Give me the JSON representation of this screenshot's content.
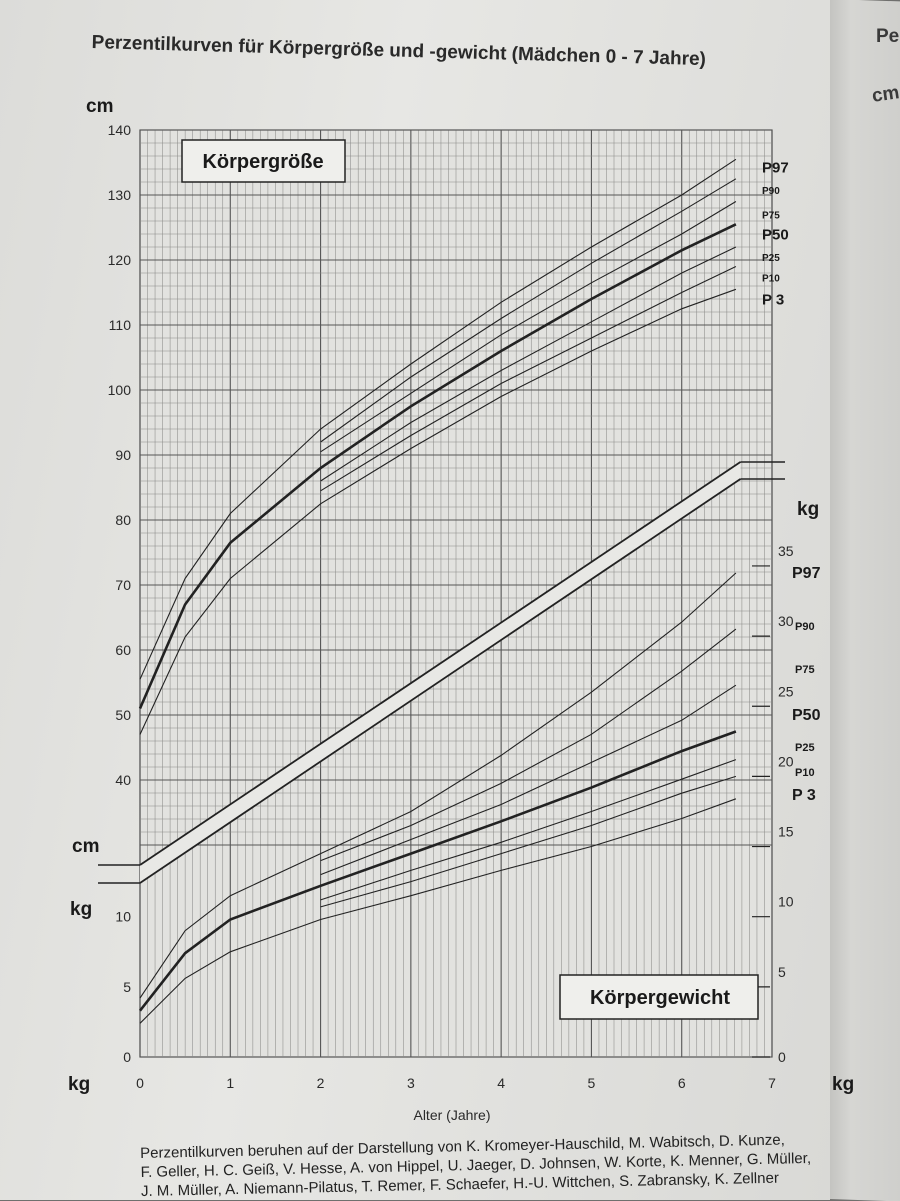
{
  "title": "Perzentilkurven für Körpergröße und -gewicht (Mädchen 0 - 7 Jahre)",
  "right_page": {
    "text_1": "Pe",
    "text_2": "cm"
  },
  "footer": {
    "line_1": "Perzentilkurven beruhen auf der Darstellung von K. Kromeyer-Hauschild, M. Wabitsch, D. Kunze,",
    "line_2": "F. Geller, H. C. Geiß, V. Hesse, A. von Hippel, U. Jaeger, D. Johnsen, W. Korte, K. Menner, G. Müller,",
    "line_3": "J. M. Müller, A. Niemann-Pilatus, T. Remer, F. Schaefer, H.-U. Wittchen, S. Zabransky, K. Zellner"
  },
  "chart_data": [
    {
      "type": "line",
      "label": "Körpergröße",
      "unit": "cm",
      "xlabel": "Alter (Jahre)",
      "xlim": [
        0,
        7
      ],
      "ylim": [
        0,
        140
      ],
      "yticks": [
        40,
        50,
        60,
        70,
        80,
        90,
        100,
        110,
        120,
        130,
        140
      ],
      "grid": true,
      "series": [
        {
          "name": "P97",
          "points": [
            [
              0,
              55.5
            ],
            [
              0.5,
              71
            ],
            [
              1,
              81
            ],
            [
              2,
              94
            ],
            [
              3,
              104
            ],
            [
              4,
              113.5
            ],
            [
              5,
              122
            ],
            [
              6,
              130
            ],
            [
              6.6,
              135.5
            ]
          ]
        },
        {
          "name": "P90",
          "points": [
            [
              2,
              92
            ],
            [
              3,
              102
            ],
            [
              4,
              111
            ],
            [
              5,
              119.5
            ],
            [
              6,
              127.5
            ],
            [
              6.6,
              132.5
            ]
          ]
        },
        {
          "name": "P75",
          "points": [
            [
              2,
              90.5
            ],
            [
              3,
              99.5
            ],
            [
              4,
              108.5
            ],
            [
              5,
              116.5
            ],
            [
              6,
              124
            ],
            [
              6.6,
              129
            ]
          ]
        },
        {
          "name": "P50",
          "points": [
            [
              0,
              51
            ],
            [
              0.5,
              67
            ],
            [
              1,
              76.5
            ],
            [
              2,
              88
            ],
            [
              3,
              97.5
            ],
            [
              4,
              106
            ],
            [
              5,
              114
            ],
            [
              6,
              121.5
            ],
            [
              6.6,
              125.5
            ]
          ]
        },
        {
          "name": "P25",
          "points": [
            [
              2,
              86
            ],
            [
              3,
              95
            ],
            [
              4,
              103
            ],
            [
              5,
              110.5
            ],
            [
              6,
              118
            ],
            [
              6.6,
              122
            ]
          ]
        },
        {
          "name": "P10",
          "points": [
            [
              2,
              84.5
            ],
            [
              3,
              93
            ],
            [
              4,
              101
            ],
            [
              5,
              108
            ],
            [
              6,
              115
            ],
            [
              6.6,
              119
            ]
          ]
        },
        {
          "name": "P 3",
          "points": [
            [
              0,
              47
            ],
            [
              0.5,
              62
            ],
            [
              1,
              71
            ],
            [
              2,
              82.5
            ],
            [
              3,
              91
            ],
            [
              4,
              99
            ],
            [
              5,
              106
            ],
            [
              6,
              112.5
            ],
            [
              6.6,
              115.5
            ]
          ]
        }
      ]
    },
    {
      "type": "line",
      "label": "Körpergewicht",
      "unit": "kg",
      "xlabel": "Alter (Jahre)",
      "xlim": [
        0,
        7
      ],
      "ylim": [
        0,
        35
      ],
      "left_yticks": [
        0,
        5,
        10
      ],
      "right_yticks": [
        0,
        5,
        10,
        15,
        20,
        25,
        30,
        35
      ],
      "xticks": [
        0,
        1,
        2,
        3,
        4,
        5,
        6,
        7
      ],
      "grid": true,
      "series": [
        {
          "name": "P97",
          "points": [
            [
              0,
              4.2
            ],
            [
              0.5,
              9
            ],
            [
              1,
              11.5
            ],
            [
              2,
              14.5
            ],
            [
              3,
              17.5
            ],
            [
              4,
              21.5
            ],
            [
              5,
              26
            ],
            [
              6,
              31
            ],
            [
              6.6,
              34.5
            ]
          ]
        },
        {
          "name": "P90",
          "points": [
            [
              2,
              14
            ],
            [
              3,
              16.5
            ],
            [
              4,
              19.5
            ],
            [
              5,
              23
            ],
            [
              6,
              27.5
            ],
            [
              6.6,
              30.5
            ]
          ]
        },
        {
          "name": "P75",
          "points": [
            [
              2,
              13
            ],
            [
              3,
              15.5
            ],
            [
              4,
              18
            ],
            [
              5,
              21
            ],
            [
              6,
              24
            ],
            [
              6.6,
              26.5
            ]
          ]
        },
        {
          "name": "P50",
          "points": [
            [
              0,
              3.3
            ],
            [
              0.5,
              7.4
            ],
            [
              1,
              9.8
            ],
            [
              2,
              12.2
            ],
            [
              3,
              14.5
            ],
            [
              4,
              16.8
            ],
            [
              5,
              19.2
            ],
            [
              6,
              21.8
            ],
            [
              6.6,
              23.2
            ]
          ]
        },
        {
          "name": "P25",
          "points": [
            [
              2,
              11.2
            ],
            [
              3,
              13.3
            ],
            [
              4,
              15.3
            ],
            [
              5,
              17.5
            ],
            [
              6,
              19.8
            ],
            [
              6.6,
              21.2
            ]
          ]
        },
        {
          "name": "P10",
          "points": [
            [
              2,
              10.7
            ],
            [
              3,
              12.5
            ],
            [
              4,
              14.5
            ],
            [
              5,
              16.5
            ],
            [
              6,
              18.8
            ],
            [
              6.6,
              20
            ]
          ]
        },
        {
          "name": "P 3",
          "points": [
            [
              0,
              2.4
            ],
            [
              0.5,
              5.6
            ],
            [
              1,
              7.5
            ],
            [
              2,
              9.8
            ],
            [
              3,
              11.5
            ],
            [
              4,
              13.3
            ],
            [
              5,
              15
            ],
            [
              6,
              17
            ],
            [
              6.6,
              18.4
            ]
          ]
        }
      ]
    }
  ]
}
